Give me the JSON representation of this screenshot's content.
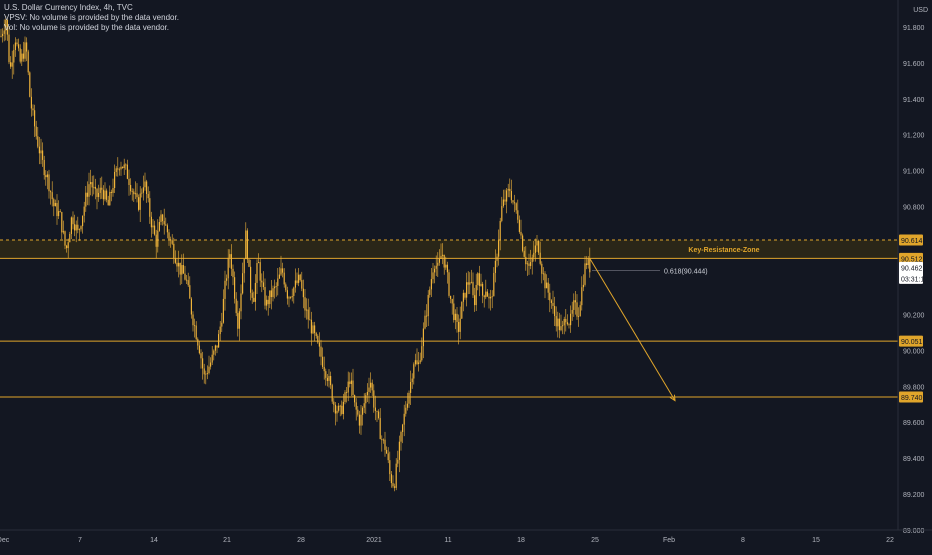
{
  "chart_data": {
    "type": "candlestick",
    "legend": {
      "title": "U.S. Dollar Currency Index, 4h, TVC",
      "line2": "VPSV: No volume is provided by the data vendor.",
      "line3": "Vol: No volume is provided by the data vendor."
    },
    "currency": "USD",
    "ylim": [
      89.0,
      91.95
    ],
    "y_ticks": [
      "91.800",
      "91.600",
      "91.400",
      "91.200",
      "91.000",
      "90.800",
      "90.200",
      "90.000",
      "89.800",
      "89.600",
      "89.400",
      "89.200",
      "89.000"
    ],
    "y_tick_values": [
      91.8,
      91.6,
      91.4,
      91.2,
      91.0,
      90.8,
      90.2,
      90.0,
      89.8,
      89.6,
      89.4,
      89.2,
      89.0
    ],
    "x_ticks": [
      {
        "label": "Dec",
        "slot": 3
      },
      {
        "label": "7",
        "slot": 80
      },
      {
        "label": "14",
        "slot": 154
      },
      {
        "label": "21",
        "slot": 227
      },
      {
        "label": "28",
        "slot": 301
      },
      {
        "label": "2021",
        "slot": 374
      },
      {
        "label": "11",
        "slot": 448
      },
      {
        "label": "18",
        "slot": 521
      },
      {
        "label": "25",
        "slot": 595
      },
      {
        "label": "Feb",
        "slot": 669
      },
      {
        "label": "8",
        "slot": 743
      },
      {
        "label": "15",
        "slot": 816
      },
      {
        "label": "22",
        "slot": 890
      }
    ],
    "x_slot_count": 932,
    "zone": {
      "label": "Key-Resistance-Zone",
      "top": 90.614,
      "bottom": 90.512
    },
    "levels": [
      {
        "value": 90.614,
        "label": "90.614",
        "style": "dashed"
      },
      {
        "value": 90.512,
        "label": "90.512",
        "style": "solid"
      },
      {
        "value": 90.051,
        "label": "90.051",
        "style": "solid"
      },
      {
        "value": 89.74,
        "label": "89.740",
        "style": "solid"
      }
    ],
    "current_price": {
      "value": 90.462,
      "label": "90.462",
      "countdown": "03:31:12"
    },
    "fib_label": {
      "text": "0.618(90.444)",
      "value": 90.444
    },
    "projection": {
      "from": {
        "slot": 590,
        "value": 90.51
      },
      "to": {
        "slot": 675,
        "value": 89.72
      }
    },
    "price_path": [
      [
        1,
        91.75
      ],
      [
        6,
        91.85
      ],
      [
        10,
        91.55
      ],
      [
        15,
        91.75
      ],
      [
        20,
        91.6
      ],
      [
        26,
        91.7
      ],
      [
        30,
        91.4
      ],
      [
        36,
        91.2
      ],
      [
        42,
        91.05
      ],
      [
        48,
        90.95
      ],
      [
        54,
        90.8
      ],
      [
        60,
        90.75
      ],
      [
        66,
        90.55
      ],
      [
        72,
        90.75
      ],
      [
        78,
        90.65
      ],
      [
        84,
        90.8
      ],
      [
        90,
        90.95
      ],
      [
        96,
        90.85
      ],
      [
        102,
        90.9
      ],
      [
        108,
        90.8
      ],
      [
        114,
        90.95
      ],
      [
        120,
        91.05
      ],
      [
        126,
        91.0
      ],
      [
        132,
        90.9
      ],
      [
        138,
        90.8
      ],
      [
        144,
        90.95
      ],
      [
        150,
        90.75
      ],
      [
        156,
        90.6
      ],
      [
        162,
        90.75
      ],
      [
        168,
        90.65
      ],
      [
        174,
        90.55
      ],
      [
        180,
        90.45
      ],
      [
        186,
        90.4
      ],
      [
        192,
        90.2
      ],
      [
        196,
        90.1
      ],
      [
        200,
        90.0
      ],
      [
        204,
        89.85
      ],
      [
        208,
        89.9
      ],
      [
        212,
        89.95
      ],
      [
        218,
        90.05
      ],
      [
        222,
        90.2
      ],
      [
        226,
        90.4
      ],
      [
        230,
        90.55
      ],
      [
        234,
        90.35
      ],
      [
        238,
        90.15
      ],
      [
        242,
        90.4
      ],
      [
        246,
        90.65
      ],
      [
        250,
        90.35
      ],
      [
        254,
        90.3
      ],
      [
        258,
        90.5
      ],
      [
        262,
        90.35
      ],
      [
        266,
        90.25
      ],
      [
        270,
        90.3
      ],
      [
        276,
        90.35
      ],
      [
        282,
        90.45
      ],
      [
        288,
        90.3
      ],
      [
        294,
        90.35
      ],
      [
        300,
        90.4
      ],
      [
        304,
        90.25
      ],
      [
        310,
        90.15
      ],
      [
        316,
        90.05
      ],
      [
        322,
        89.95
      ],
      [
        328,
        89.85
      ],
      [
        334,
        89.7
      ],
      [
        340,
        89.65
      ],
      [
        346,
        89.75
      ],
      [
        350,
        89.85
      ],
      [
        354,
        89.7
      ],
      [
        360,
        89.6
      ],
      [
        366,
        89.75
      ],
      [
        370,
        89.85
      ],
      [
        374,
        89.7
      ],
      [
        378,
        89.6
      ],
      [
        382,
        89.5
      ],
      [
        386,
        89.45
      ],
      [
        390,
        89.3
      ],
      [
        394,
        89.25
      ],
      [
        398,
        89.4
      ],
      [
        402,
        89.55
      ],
      [
        406,
        89.7
      ],
      [
        410,
        89.8
      ],
      [
        414,
        89.95
      ],
      [
        418,
        89.9
      ],
      [
        422,
        90.05
      ],
      [
        426,
        90.2
      ],
      [
        430,
        90.35
      ],
      [
        434,
        90.5
      ],
      [
        438,
        90.45
      ],
      [
        442,
        90.55
      ],
      [
        446,
        90.45
      ],
      [
        450,
        90.3
      ],
      [
        454,
        90.2
      ],
      [
        458,
        90.1
      ],
      [
        462,
        90.25
      ],
      [
        466,
        90.35
      ],
      [
        470,
        90.4
      ],
      [
        474,
        90.25
      ],
      [
        478,
        90.45
      ],
      [
        482,
        90.3
      ],
      [
        486,
        90.35
      ],
      [
        490,
        90.25
      ],
      [
        494,
        90.4
      ],
      [
        498,
        90.6
      ],
      [
        502,
        90.8
      ],
      [
        506,
        90.85
      ],
      [
        510,
        90.9
      ],
      [
        514,
        90.8
      ],
      [
        518,
        90.75
      ],
      [
        522,
        90.6
      ],
      [
        526,
        90.5
      ],
      [
        530,
        90.45
      ],
      [
        534,
        90.55
      ],
      [
        538,
        90.6
      ],
      [
        542,
        90.45
      ],
      [
        546,
        90.35
      ],
      [
        550,
        90.3
      ],
      [
        554,
        90.2
      ],
      [
        558,
        90.15
      ],
      [
        562,
        90.1
      ],
      [
        566,
        90.2
      ],
      [
        570,
        90.15
      ],
      [
        574,
        90.25
      ],
      [
        578,
        90.2
      ],
      [
        582,
        90.35
      ],
      [
        586,
        90.5
      ],
      [
        590,
        90.46
      ]
    ],
    "colors": {
      "background": "#131722",
      "candle": "#f0b43a",
      "level_line": "#e0a52b",
      "zone_fill": "#2a2618",
      "axis_text": "#b2b5be",
      "label_text": "#131722",
      "current_label_bg": "#ffffff"
    }
  }
}
